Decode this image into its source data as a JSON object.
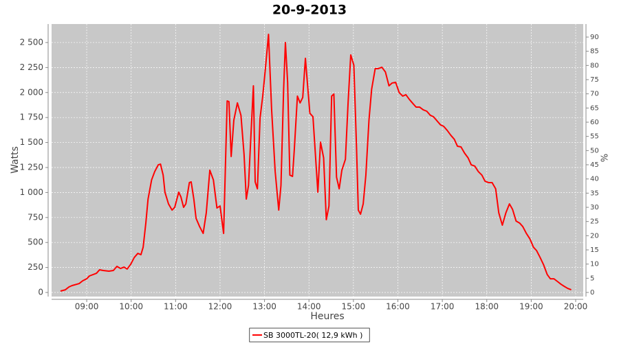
{
  "chart_data": {
    "type": "line",
    "title": "20-9-2013",
    "xlabel": "Heures",
    "ylabel": "Watts",
    "y2label": "%",
    "xlim": [
      8.21,
      20.17
    ],
    "ylim": [
      -41,
      2685
    ],
    "y2lim": [
      -1.45,
      94.6
    ],
    "grid": true,
    "xticks": [
      {
        "value": 9,
        "label": "09:00"
      },
      {
        "value": 10,
        "label": "10:00"
      },
      {
        "value": 11,
        "label": "11:00"
      },
      {
        "value": 12,
        "label": "12:00"
      },
      {
        "value": 13,
        "label": "13:00"
      },
      {
        "value": 14,
        "label": "14:00"
      },
      {
        "value": 15,
        "label": "15:00"
      },
      {
        "value": 16,
        "label": "16:00"
      },
      {
        "value": 17,
        "label": "17:00"
      },
      {
        "value": 18,
        "label": "18:00"
      },
      {
        "value": 19,
        "label": "19:00"
      },
      {
        "value": 20,
        "label": "20:00"
      }
    ],
    "yticks": [
      0,
      250,
      500,
      750,
      {
        "value": 1000,
        "label": "1 000"
      },
      {
        "value": 1250,
        "label": "1 250"
      },
      {
        "value": 1500,
        "label": "1 500"
      },
      {
        "value": 1750,
        "label": "1 750"
      },
      {
        "value": 2000,
        "label": "2 000"
      },
      {
        "value": 2250,
        "label": "2 250"
      },
      {
        "value": 2500,
        "label": "2 500"
      }
    ],
    "y2ticks": [
      0,
      5,
      10,
      15,
      20,
      25,
      30,
      35,
      40,
      45,
      50,
      55,
      60,
      65,
      70,
      75,
      80,
      85,
      90
    ],
    "legend": "bottom",
    "series": [
      {
        "name": "SB 3000TL-20( 12,9 kWh )",
        "color": "#ff0000",
        "x": [
          8.41,
          8.52,
          8.6,
          8.67,
          8.83,
          8.91,
          9.0,
          9.06,
          9.22,
          9.29,
          9.37,
          9.5,
          9.6,
          9.68,
          9.76,
          9.84,
          9.91,
          9.99,
          10.07,
          10.15,
          10.22,
          10.27,
          10.33,
          10.38,
          10.46,
          10.53,
          10.61,
          10.66,
          10.72,
          10.76,
          10.84,
          10.92,
          10.98,
          11.07,
          11.12,
          11.18,
          11.23,
          11.31,
          11.35,
          11.41,
          11.46,
          11.54,
          11.62,
          11.69,
          11.77,
          11.85,
          11.93,
          12.0,
          12.08,
          12.16,
          12.2,
          12.25,
          12.31,
          12.39,
          12.47,
          12.54,
          12.59,
          12.64,
          12.7,
          12.75,
          12.79,
          12.84,
          12.9,
          12.96,
          13.02,
          13.09,
          13.16,
          13.24,
          13.32,
          13.37,
          13.43,
          13.47,
          13.52,
          13.57,
          13.63,
          13.67,
          13.74,
          13.8,
          13.86,
          13.92,
          13.97,
          14.02,
          14.09,
          14.14,
          14.2,
          14.26,
          14.33,
          14.39,
          14.45,
          14.51,
          14.56,
          14.62,
          14.68,
          14.74,
          14.82,
          14.88,
          14.94,
          15.01,
          15.07,
          15.11,
          15.16,
          15.22,
          15.28,
          15.35,
          15.41,
          15.49,
          15.56,
          15.64,
          15.72,
          15.8,
          15.87,
          15.95,
          16.03,
          16.11,
          16.18,
          16.26,
          16.34,
          16.41,
          16.49,
          16.57,
          16.65,
          16.73,
          16.8,
          16.88,
          16.96,
          17.03,
          17.11,
          17.19,
          17.27,
          17.34,
          17.42,
          17.5,
          17.58,
          17.65,
          17.73,
          17.81,
          17.89,
          17.96,
          18.04,
          18.12,
          18.2,
          18.27,
          18.35,
          18.43,
          18.51,
          18.58,
          18.66,
          18.74,
          18.81,
          18.89,
          18.97,
          19.05,
          19.12,
          19.2,
          19.28,
          19.36,
          19.43,
          19.51,
          19.59,
          19.67,
          19.74,
          19.82,
          19.9
        ],
        "values": [
          14,
          27,
          55,
          69,
          89,
          117,
          137,
          165,
          192,
          227,
          220,
          213,
          220,
          261,
          240,
          254,
          234,
          282,
          350,
          391,
          378,
          453,
          694,
          934,
          1126,
          1209,
          1277,
          1284,
          1174,
          1003,
          886,
          824,
          852,
          1003,
          955,
          852,
          886,
          1099,
          1106,
          934,
          742,
          659,
          591,
          797,
          1223,
          1126,
          845,
          865,
          591,
          1916,
          1909,
          1360,
          1724,
          1896,
          1772,
          1380,
          934,
          1071,
          1621,
          2067,
          1106,
          1037,
          1745,
          1964,
          2239,
          2582,
          1827,
          1209,
          824,
          1071,
          2033,
          2500,
          2102,
          1174,
          1161,
          1428,
          1964,
          1896,
          1951,
          2342,
          2067,
          1793,
          1758,
          1415,
          1003,
          1504,
          1346,
          728,
          865,
          1964,
          1985,
          1154,
          1037,
          1223,
          1332,
          1896,
          2376,
          2273,
          1449,
          824,
          783,
          886,
          1174,
          1724,
          2033,
          2239,
          2239,
          2253,
          2205,
          2067,
          2095,
          2102,
          1999,
          1964,
          1978,
          1930,
          1889,
          1854,
          1854,
          1827,
          1813,
          1772,
          1758,
          1717,
          1676,
          1662,
          1621,
          1573,
          1532,
          1463,
          1456,
          1394,
          1346,
          1277,
          1264,
          1209,
          1174,
          1113,
          1099,
          1099,
          1037,
          797,
          673,
          797,
          886,
          831,
          714,
          694,
          659,
          591,
          536,
          453,
          419,
          350,
          275,
          179,
          137,
          137,
          110,
          82,
          62,
          41,
          27
        ]
      }
    ]
  }
}
